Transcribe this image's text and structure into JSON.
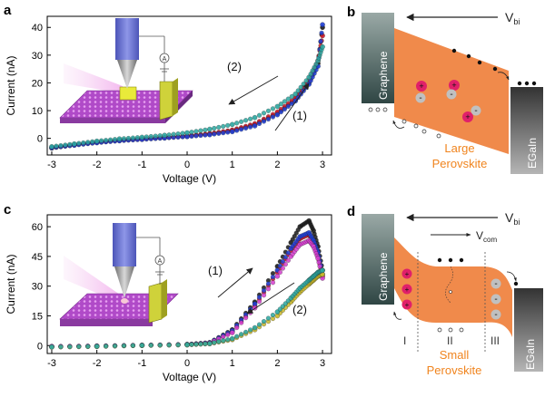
{
  "panels": {
    "a": {
      "letter": "a"
    },
    "b": {
      "letter": "b"
    },
    "c": {
      "letter": "c"
    },
    "d": {
      "letter": "d"
    }
  },
  "chart_data": [
    {
      "panel": "a",
      "type": "scatter",
      "xlabel": "Voltage (V)",
      "ylabel": "Current (nA)",
      "xlim": [
        -3.1,
        3.2
      ],
      "ylim": [
        -6,
        44
      ],
      "xticks": [
        "-3",
        "-2",
        "-1",
        "0",
        "1",
        "2",
        "3"
      ],
      "yticks": [
        "0",
        "10",
        "20",
        "30",
        "40"
      ],
      "annotations": [
        "(2)",
        "(1)"
      ],
      "series": [
        {
          "color": "#1a1a1a",
          "x": [
            -3,
            -2.5,
            -2,
            -1.5,
            -1,
            -0.5,
            0,
            0.5,
            1,
            1.5,
            2,
            2.4,
            2.7,
            2.9,
            3.0
          ],
          "y": [
            -3.5,
            -2.4,
            -1.5,
            -0.8,
            -0.3,
            0.2,
            0.8,
            1.6,
            2.8,
            5,
            9,
            14,
            20,
            27,
            40
          ]
        },
        {
          "color": "#d11a2a",
          "x": [
            -3,
            -2.5,
            -2,
            -1.5,
            -1,
            -0.5,
            0,
            0.5,
            1,
            1.5,
            2,
            2.4,
            2.7,
            2.9,
            3.0
          ],
          "y": [
            -3.3,
            -2.3,
            -1.4,
            -0.7,
            -0.2,
            0.3,
            0.9,
            1.7,
            3,
            5.3,
            9.5,
            14.5,
            21,
            28,
            37
          ]
        },
        {
          "color": "#1f3fd6",
          "x": [
            -3,
            -2.5,
            -2,
            -1.5,
            -1,
            -0.5,
            0,
            0.5,
            1,
            1.5,
            2,
            2.4,
            2.7,
            2.9,
            3.0
          ],
          "y": [
            -3.4,
            -2.5,
            -1.6,
            -0.9,
            -0.4,
            0.1,
            0.6,
            1.3,
            2.4,
            4.5,
            8.5,
            13.5,
            19.5,
            26,
            41
          ]
        },
        {
          "color": "#2aa7a0",
          "x": [
            -3,
            -2.5,
            -2,
            -1.5,
            -1,
            -0.5,
            0,
            0.5,
            1,
            1.5,
            2,
            2.4,
            2.7,
            2.9,
            3.0
          ],
          "y": [
            -3.0,
            -2.0,
            -1.0,
            -0.2,
            0.4,
            1.1,
            2.0,
            3.3,
            5.0,
            7.5,
            11.5,
            16,
            22,
            28,
            33
          ]
        }
      ]
    },
    {
      "panel": "c",
      "type": "scatter",
      "xlabel": "Voltage (V)",
      "ylabel": "Current (nA)",
      "xlim": [
        -3.1,
        3.2
      ],
      "ylim": [
        -4,
        66
      ],
      "xticks": [
        "-3",
        "-2",
        "-1",
        "0",
        "1",
        "2",
        "3"
      ],
      "yticks": [
        "0",
        "15",
        "30",
        "45",
        "60"
      ],
      "annotations": [
        "(1)",
        "(2)"
      ],
      "series": [
        {
          "color": "#1a1a1a",
          "x": [
            -3,
            -2,
            -1,
            0,
            0.5,
            1,
            1.5,
            2,
            2.3,
            2.5,
            2.7,
            2.8,
            2.9,
            3.0
          ],
          "y": [
            -0.5,
            -0.3,
            0.1,
            0.6,
            1.5,
            8,
            22,
            40,
            52,
            60,
            63,
            58,
            50,
            38
          ]
        },
        {
          "color": "#d11a2a",
          "x": [
            -3,
            -2,
            -1,
            0,
            0.5,
            1,
            1.5,
            2,
            2.3,
            2.5,
            2.7,
            2.8,
            2.9,
            3.0
          ],
          "y": [
            -0.6,
            -0.3,
            0.1,
            0.5,
            1.4,
            7,
            20,
            37,
            48,
            54,
            56,
            52,
            45,
            35
          ]
        },
        {
          "color": "#1f3fd6",
          "x": [
            -3,
            -2,
            -1,
            0,
            0.5,
            1,
            1.5,
            2,
            2.3,
            2.5,
            2.7,
            2.8,
            2.9,
            3.0
          ],
          "y": [
            -0.5,
            -0.2,
            0.2,
            0.6,
            1.5,
            7.5,
            21,
            38,
            49,
            55,
            57,
            53,
            47,
            36
          ]
        },
        {
          "color": "#d63fd0",
          "x": [
            -3,
            -2,
            -1,
            0,
            0.5,
            1,
            1.5,
            2,
            2.3,
            2.5,
            2.7,
            2.8,
            2.9,
            3.0
          ],
          "y": [
            -0.4,
            -0.2,
            0.2,
            0.5,
            1.3,
            6.5,
            19,
            35,
            45,
            51,
            53,
            50,
            44,
            34
          ]
        },
        {
          "color": "#c9b92a",
          "x": [
            -3,
            -2,
            -1,
            0,
            0.5,
            1,
            1.5,
            2,
            2.3,
            2.5,
            2.7,
            2.8,
            2.9,
            3.0
          ],
          "y": [
            -0.8,
            -0.5,
            0.0,
            0.3,
            0.9,
            3,
            8,
            15,
            22,
            27,
            31,
            33,
            35,
            36
          ]
        },
        {
          "color": "#2aa7a0",
          "x": [
            -3,
            -2,
            -1,
            0,
            0.5,
            1,
            1.5,
            2,
            2.3,
            2.5,
            2.7,
            2.8,
            2.9,
            3.0
          ],
          "y": [
            -0.7,
            -0.4,
            0.1,
            0.4,
            1.0,
            3.5,
            9,
            17,
            24,
            29,
            33,
            35,
            37,
            38
          ]
        }
      ]
    }
  ],
  "diagram_b": {
    "vbi": "V",
    "vbi_sub": "bi",
    "left_label": "Graphene",
    "right_label": "EGaIn",
    "material_label_1": "Large",
    "material_label_2": "Perovskite",
    "colors": {
      "perovskite": "#f08a4b",
      "graphene": "#4e6f6d",
      "egain": "#777777",
      "ion": "#e0206a"
    }
  },
  "diagram_d": {
    "vbi": "V",
    "vbi_sub": "bi",
    "vcom": "V",
    "vcom_sub": "com",
    "left_label": "Graphene",
    "right_label": "EGaIn",
    "material_label_1": "Small",
    "material_label_2": "Perovskite",
    "region_1": "I",
    "region_2": "II",
    "region_3": "III"
  }
}
